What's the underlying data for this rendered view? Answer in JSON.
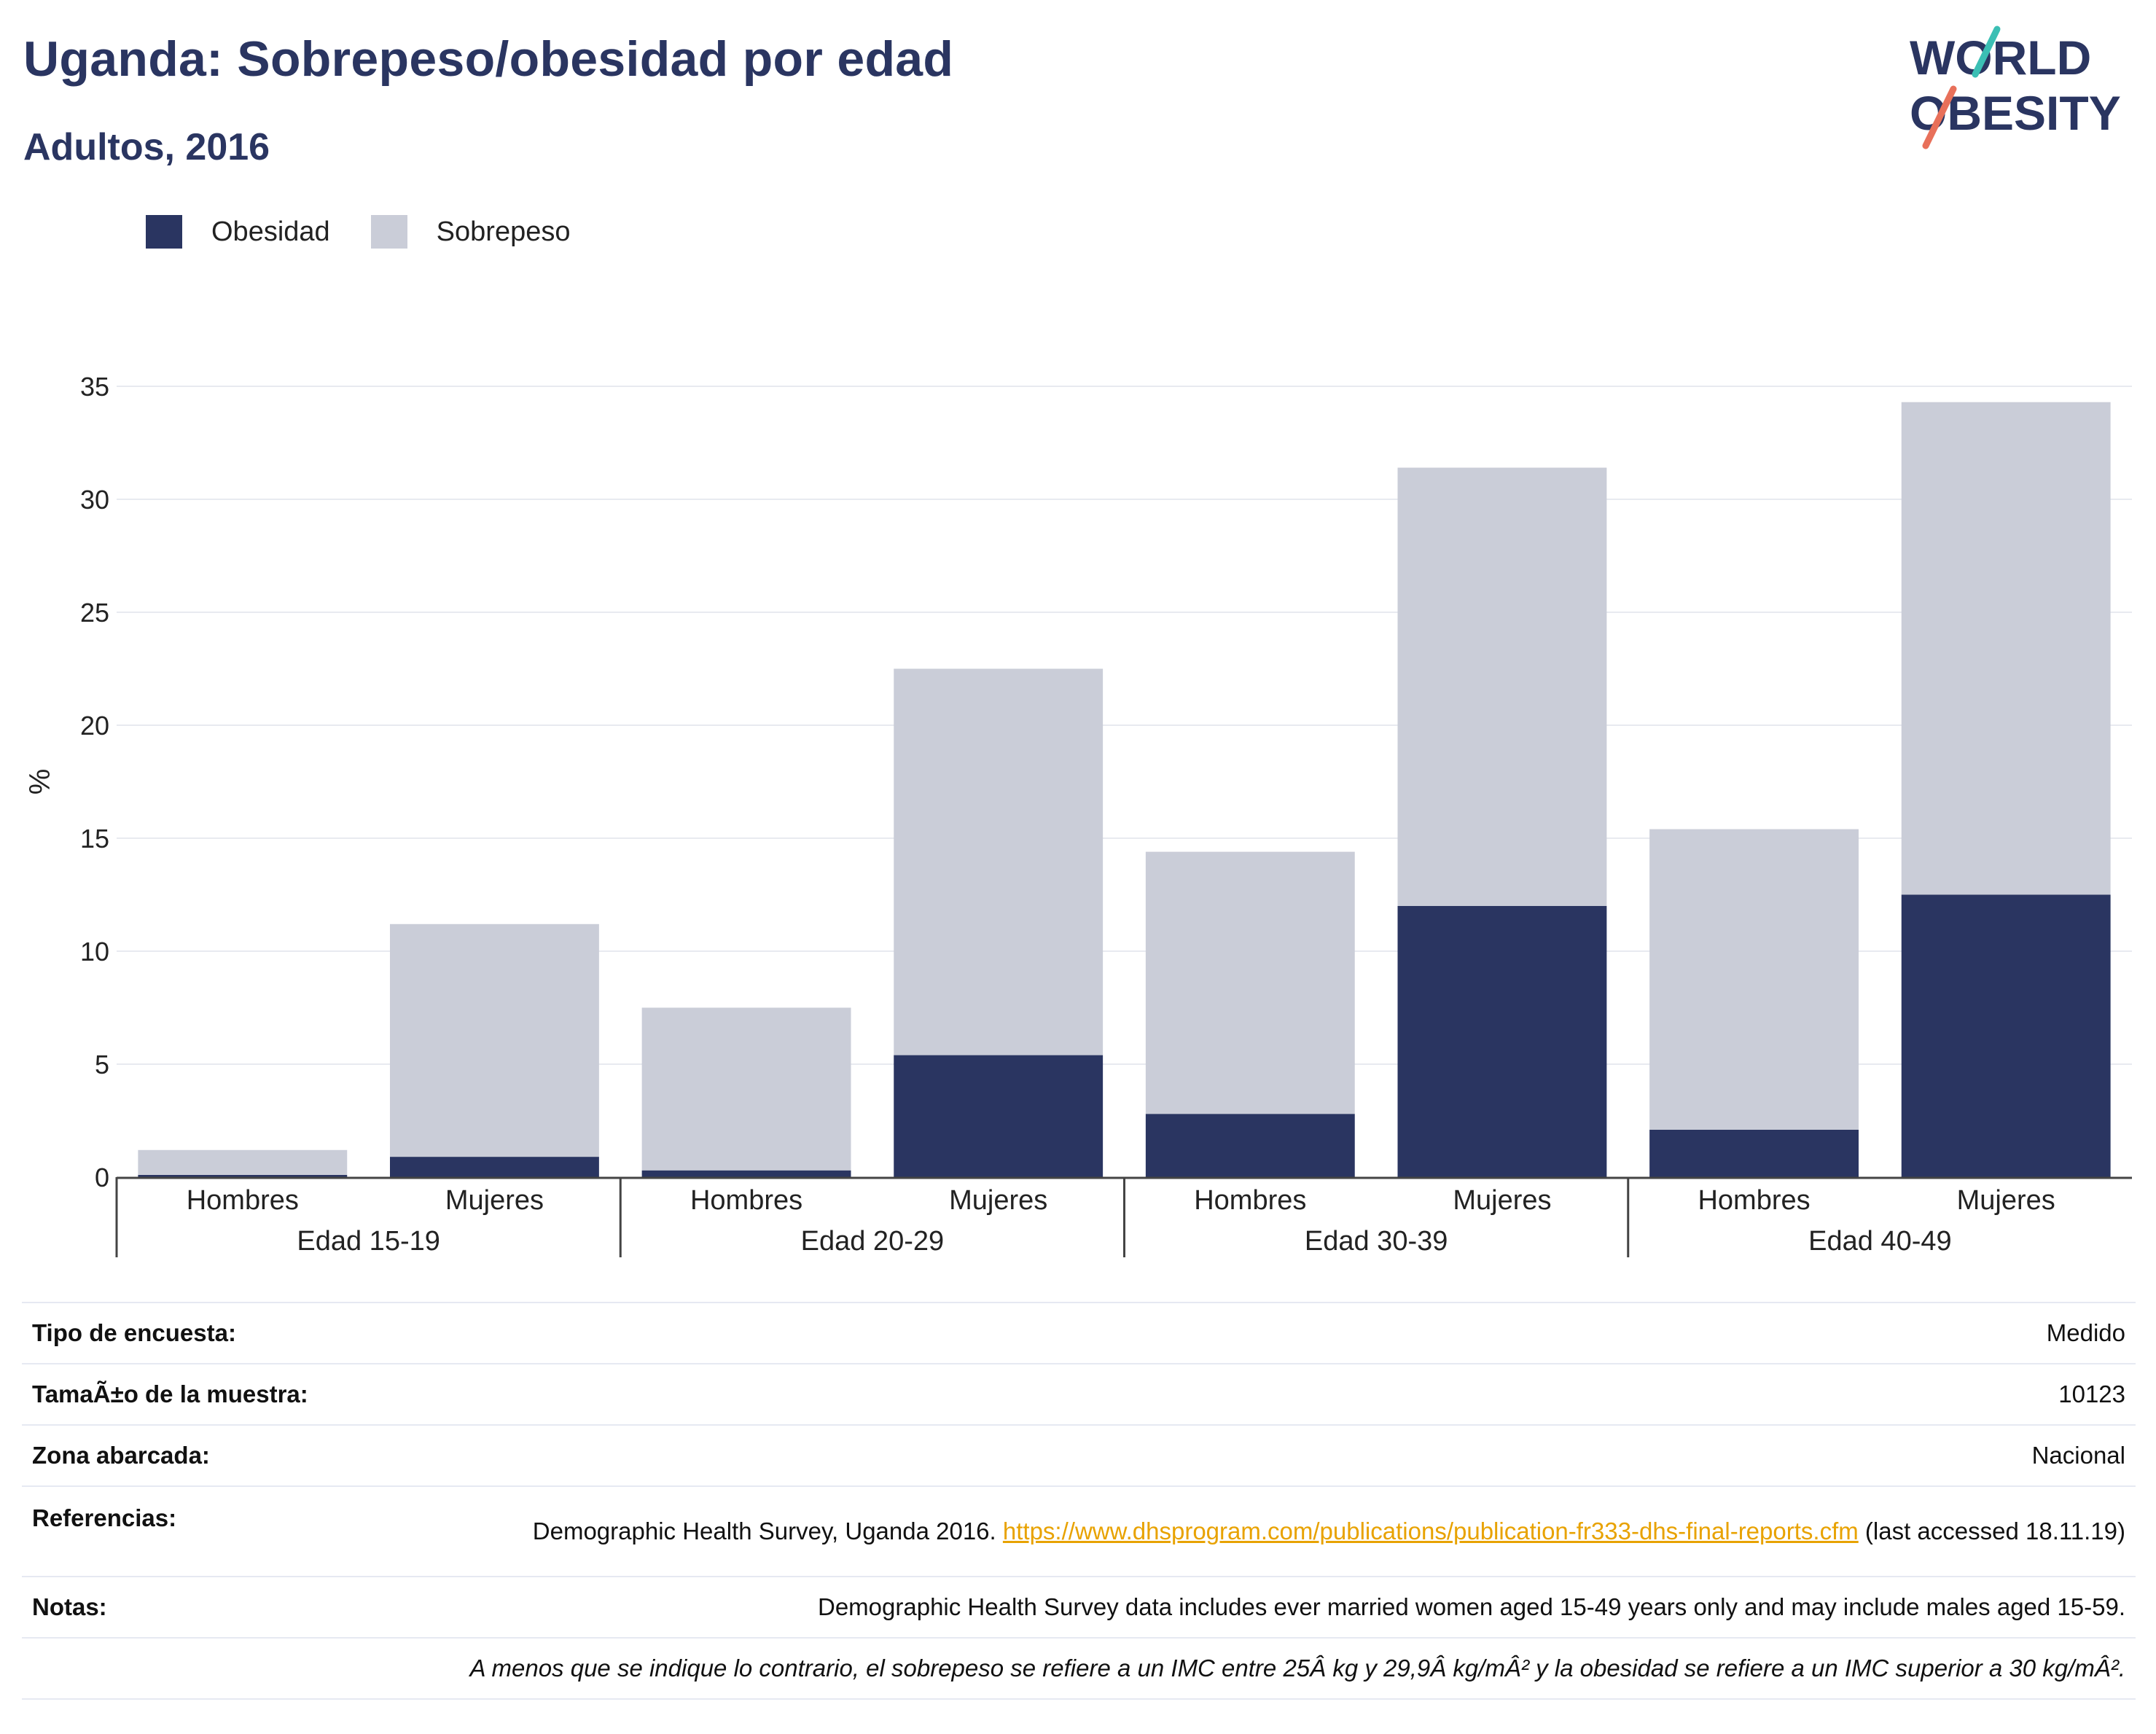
{
  "header": {
    "title": "Uganda: Sobrepeso/obesidad por edad",
    "subtitle": "Adultos, 2016",
    "logo": {
      "line1": "WORLD",
      "line2": "OBESITY"
    }
  },
  "colors": {
    "obesity": "#2a3561",
    "overweight": "#cacdd8",
    "title": "#2a3561",
    "link": "#e8a200",
    "logo_teal": "#3bbfb4",
    "logo_coral": "#e8705a"
  },
  "chart_data": {
    "type": "bar",
    "stacked": true,
    "categories": [
      "Hombres",
      "Mujeres",
      "Hombres",
      "Mujeres",
      "Hombres",
      "Mujeres",
      "Hombres",
      "Mujeres"
    ],
    "groups": [
      {
        "label": "Edad 15-19",
        "categories": [
          "Hombres",
          "Mujeres"
        ]
      },
      {
        "label": "Edad 20-29",
        "categories": [
          "Hombres",
          "Mujeres"
        ]
      },
      {
        "label": "Edad 30-39",
        "categories": [
          "Hombres",
          "Mujeres"
        ]
      },
      {
        "label": "Edad 40-49",
        "categories": [
          "Hombres",
          "Mujeres"
        ]
      }
    ],
    "series": [
      {
        "name": "Obesidad",
        "values": [
          0.1,
          0.9,
          0.3,
          5.4,
          2.8,
          12.0,
          2.1,
          12.5
        ]
      },
      {
        "name": "Sobrepeso",
        "values": [
          1.1,
          10.3,
          7.2,
          17.1,
          11.6,
          19.4,
          13.3,
          21.8
        ]
      }
    ],
    "ylabel": "%",
    "ylim": [
      0,
      35
    ],
    "yticks": [
      0,
      5,
      10,
      15,
      20,
      25,
      30,
      35
    ],
    "grid": true,
    "legend_position": "top-left"
  },
  "info": {
    "rows": [
      {
        "label": "Tipo de encuesta:",
        "value": "Medido"
      },
      {
        "label": "TamaÃ±o de la muestra:",
        "value": "10123"
      },
      {
        "label": "Zona abarcada:",
        "value": "Nacional"
      }
    ],
    "references": {
      "label": "Referencias:",
      "text_before": "Demographic Health Survey, Uganda 2016. ",
      "link": "https://www.dhsprogram.com/publications/publication-fr333-dhs-final-reports.cfm",
      "text_after": " (last accessed 18.11.19)"
    },
    "notes": {
      "label": "Notas:",
      "value": "Demographic Health Survey data includes ever married women aged 15-49 years only and may include males aged 15-59."
    },
    "footnote": "A menos que se indique lo contrario, el sobrepeso se refiere a un IMC entre 25Â kg y 29,9Â kg/mÂ² y la obesidad se refiere a un IMC superior a 30 kg/mÂ²."
  }
}
